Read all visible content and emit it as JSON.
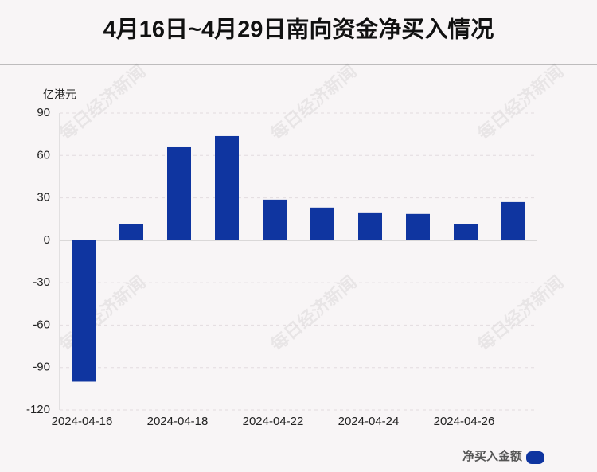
{
  "chart_data": {
    "type": "bar",
    "title": "4月16日~4月29日南向资金净买入情况",
    "y_axis_label": "亿港元",
    "categories": [
      "2024-04-16",
      null,
      "2024-04-18",
      null,
      "2024-04-22",
      null,
      "2024-04-24",
      null,
      "2024-04-26",
      null
    ],
    "series": [
      {
        "name": "净买入金额",
        "color": "#0f35a0",
        "values": [
          -100,
          11.2,
          65.8,
          73.7,
          28.7,
          23.1,
          19.7,
          18.6,
          11.2,
          27
        ]
      }
    ],
    "ylim": [
      -120,
      90
    ],
    "yticks": [
      -120,
      -90,
      -60,
      -30,
      0,
      30,
      60,
      90
    ],
    "grid": true,
    "watermark": "每日经济新闻"
  }
}
